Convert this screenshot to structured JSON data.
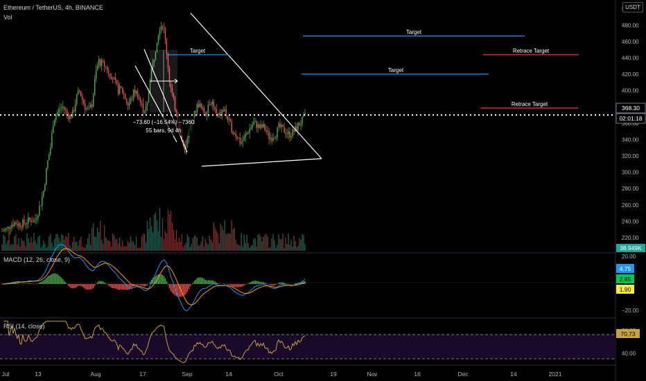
{
  "header": {
    "symbol_line": "Ethereum / TetherUS, 4h, BINANCE",
    "volume_label": "Vol",
    "currency": "USDT"
  },
  "price_axis": {
    "ticks": [
      "500.00",
      "480.00",
      "460.00",
      "440.00",
      "420.00",
      "400.00",
      "380.00",
      "360.00",
      "340.00",
      "320.00",
      "300.00",
      "280.00",
      "260.00",
      "240.00",
      "220.00"
    ],
    "current_price": "368.30",
    "countdown": "02:01:18",
    "volume_value": "38.949K"
  },
  "time_axis": {
    "ticks": [
      "Jul",
      "13",
      "Aug",
      "17",
      "Sep",
      "14",
      "Oct",
      "19",
      "Nov",
      "16",
      "Dec",
      "14",
      "2021"
    ]
  },
  "annotations": {
    "target_1": "Target",
    "target_2": "Target",
    "target_3": "Target",
    "retrace_1": "Retrace Target",
    "retrace_2": "Retrace Target",
    "measure_line1": "−73.60 (−16.54%) −7360",
    "measure_line2": "55 bars, 9d 4h"
  },
  "macd": {
    "label": "MACD (12, 26, close, 9)",
    "ticks": [
      "20.00",
      "−20.00"
    ],
    "value_blue": "4.75",
    "value_green": "2.85",
    "value_yellow": "1.90"
  },
  "rsi": {
    "label": "RSI (14, close)",
    "ticks": [
      "80.00",
      "40.00"
    ],
    "value": "70.73"
  },
  "colors": {
    "up": "#26a69a",
    "up_bright": "#4caf50",
    "down": "#ef5350",
    "target_line": "#2196f3",
    "retrace_line": "#f23645",
    "macd_line": "#2196f3",
    "signal_line": "#ff9800",
    "rsi_line": "#c8a23a",
    "rsi_bg": "#1a0a2a"
  },
  "chart_data": {
    "type": "candlestick",
    "ylim": [
      200,
      500
    ],
    "x_ticks": [
      "Jul",
      "13",
      "Aug",
      "17",
      "Sep",
      "14",
      "Oct",
      "19",
      "Nov",
      "16",
      "Dec",
      "14",
      "2021"
    ],
    "last_price": 368.3,
    "price_path": [
      [
        0,
        228
      ],
      [
        0.3,
        230
      ],
      [
        0.5,
        236
      ],
      [
        0.8,
        238
      ],
      [
        1.1,
        236
      ],
      [
        1.4,
        238
      ],
      [
        1.8,
        242
      ],
      [
        2.0,
        240
      ],
      [
        2.2,
        250
      ],
      [
        2.4,
        262
      ],
      [
        2.6,
        280
      ],
      [
        2.8,
        310
      ],
      [
        3.0,
        330
      ],
      [
        3.2,
        365
      ],
      [
        3.4,
        372
      ],
      [
        3.6,
        378
      ],
      [
        3.8,
        380
      ],
      [
        4.0,
        372
      ],
      [
        4.2,
        368
      ],
      [
        4.4,
        372
      ],
      [
        4.6,
        390
      ],
      [
        4.8,
        400
      ],
      [
        5.0,
        388
      ],
      [
        5.2,
        378
      ],
      [
        5.4,
        375
      ],
      [
        5.6,
        385
      ],
      [
        5.8,
        420
      ],
      [
        6.0,
        436
      ],
      [
        6.2,
        432
      ],
      [
        6.4,
        430
      ],
      [
        6.6,
        424
      ],
      [
        6.8,
        418
      ],
      [
        7.0,
        410
      ],
      [
        7.2,
        400
      ],
      [
        7.4,
        402
      ],
      [
        7.6,
        394
      ],
      [
        7.8,
        382
      ],
      [
        8.0,
        388
      ],
      [
        8.2,
        400
      ],
      [
        8.4,
        396
      ],
      [
        8.6,
        384
      ],
      [
        8.8,
        376
      ],
      [
        9.0,
        380
      ],
      [
        9.2,
        418
      ],
      [
        9.4,
        436
      ],
      [
        9.6,
        462
      ],
      [
        9.8,
        480
      ],
      [
        10.0,
        480
      ],
      [
        10.2,
        450
      ],
      [
        10.4,
        410
      ],
      [
        10.6,
        390
      ],
      [
        10.8,
        374
      ],
      [
        11.0,
        356
      ],
      [
        11.2,
        334
      ],
      [
        11.4,
        330
      ],
      [
        11.6,
        350
      ],
      [
        11.8,
        360
      ],
      [
        12.0,
        376
      ],
      [
        12.2,
        384
      ],
      [
        12.4,
        376
      ],
      [
        12.6,
        372
      ],
      [
        12.8,
        384
      ],
      [
        13.0,
        388
      ],
      [
        13.2,
        376
      ],
      [
        13.4,
        366
      ],
      [
        13.6,
        374
      ],
      [
        13.8,
        376
      ],
      [
        14.0,
        364
      ],
      [
        14.2,
        356
      ],
      [
        14.4,
        348
      ],
      [
        14.6,
        344
      ],
      [
        14.8,
        336
      ],
      [
        15.0,
        340
      ],
      [
        15.2,
        348
      ],
      [
        15.4,
        354
      ],
      [
        15.6,
        360
      ],
      [
        15.8,
        358
      ],
      [
        16.0,
        354
      ],
      [
        16.2,
        356
      ],
      [
        16.4,
        350
      ],
      [
        16.6,
        342
      ],
      [
        16.8,
        344
      ],
      [
        17.0,
        348
      ],
      [
        17.2,
        356
      ],
      [
        17.4,
        352
      ],
      [
        17.6,
        350
      ],
      [
        17.8,
        346
      ],
      [
        18.0,
        348
      ],
      [
        18.2,
        352
      ],
      [
        18.4,
        358
      ],
      [
        18.6,
        362
      ],
      [
        18.8,
        368
      ]
    ],
    "target_levels": [
      461,
      417
    ],
    "retrace_levels": [
      439,
      362
    ],
    "macd_range": [
      -25,
      25
    ],
    "rsi_range": [
      20,
      90
    ]
  }
}
